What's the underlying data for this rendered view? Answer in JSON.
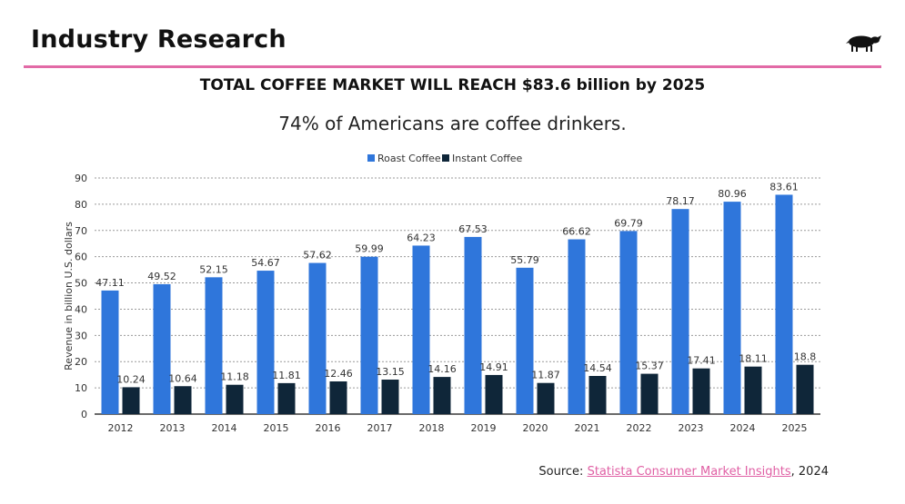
{
  "slide": {
    "title": "Industry Research",
    "headline": "TOTAL COFFEE MARKET WILL REACH $83.6 billion by 2025",
    "subheadline": "74% of Americans are coffee drinkers."
  },
  "source": {
    "prefix": "Source: ",
    "link_text": "Statista Consumer Market Insights",
    "suffix": ", 2024"
  },
  "colors": {
    "accent": "#e26aa6",
    "roast": "#2f76db",
    "instant": "#0f2639"
  },
  "chart_data": {
    "type": "bar",
    "categories": [
      "2012",
      "2013",
      "2014",
      "2015",
      "2016",
      "2017",
      "2018",
      "2019",
      "2020",
      "2021",
      "2022",
      "2023",
      "2024",
      "2025"
    ],
    "series": [
      {
        "name": "Roast Coffee",
        "values": [
          47.11,
          49.52,
          52.15,
          54.67,
          57.62,
          59.99,
          64.23,
          67.53,
          55.79,
          66.62,
          69.79,
          78.17,
          80.96,
          83.61
        ],
        "labels": [
          "47.11",
          "49.52",
          "52.15",
          "54.67",
          "57.62",
          "59.99",
          "64.23",
          "67.53",
          "55.79",
          "66.62",
          "69.79",
          "78.17",
          "80.96",
          "83.61"
        ]
      },
      {
        "name": "Instant Coffee",
        "values": [
          10.24,
          10.64,
          11.18,
          11.81,
          12.46,
          13.15,
          14.16,
          14.91,
          11.87,
          14.54,
          15.37,
          17.41,
          18.11,
          18.8
        ],
        "labels": [
          "10.24",
          "10.64",
          "11.18",
          "11.81",
          "12.46",
          "13.15",
          "14.16",
          "14.91",
          "11.87",
          "14.54",
          "15.37",
          "17.41",
          "18.11",
          "18.8"
        ]
      }
    ],
    "ylabel": "Revenue in billion U.S. dollars",
    "xlabel": "",
    "ylim": [
      0,
      90
    ],
    "yticks": [
      "0",
      "10",
      "20",
      "30",
      "40",
      "50",
      "60",
      "70",
      "80",
      "90"
    ],
    "grid": true,
    "legend": "top-center"
  }
}
